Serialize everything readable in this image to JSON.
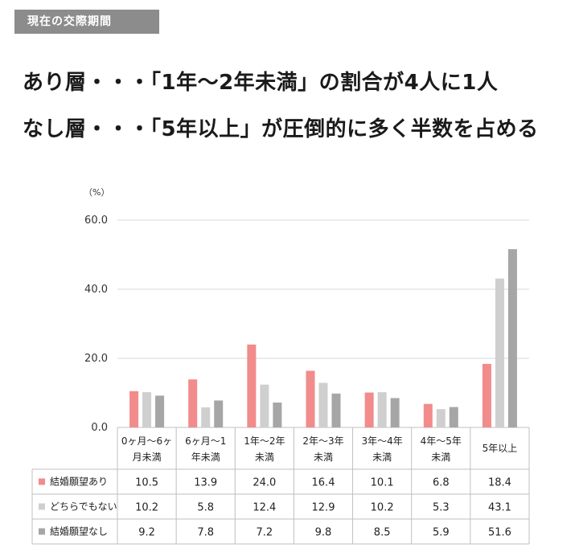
{
  "header": {
    "tag": "現在の交際期間",
    "headline_1": "あり層・・・「1年～2年未満」の割合が4人に1人",
    "headline_2": "なし層・・・「5年以上」が圧倒的に多く半数を占める"
  },
  "colors": {
    "series_1": "#f28b8b",
    "series_2": "#cfcfcf",
    "series_3": "#a6a6a6",
    "tag_bg": "#8c8c8c",
    "gridline": "#d9d9d9"
  },
  "chart_data": {
    "type": "bar",
    "unit_label": "（%）",
    "ylim": [
      0,
      60
    ],
    "yticks": [
      0,
      20,
      40,
      60
    ],
    "ytick_labels": [
      "0.0",
      "20.0",
      "40.0",
      "60.0"
    ],
    "grid": "horizontal",
    "categories": [
      [
        "0ヶ月～6ヶ",
        "月未満"
      ],
      [
        "6ヶ月～1",
        "年未満"
      ],
      [
        "1年～2年",
        "未満"
      ],
      [
        "2年～3年",
        "未満"
      ],
      [
        "3年～4年",
        "未満"
      ],
      [
        "4年～5年",
        "未満"
      ],
      [
        "5年以上"
      ]
    ],
    "series": [
      {
        "name": "結婚願望あり",
        "values": [
          10.5,
          13.9,
          24.0,
          16.4,
          10.1,
          6.8,
          18.4
        ],
        "labels": [
          "10.5",
          "13.9",
          "24.0",
          "16.4",
          "10.1",
          "6.8",
          "18.4"
        ]
      },
      {
        "name": "どちらでもない",
        "values": [
          10.2,
          5.8,
          12.4,
          12.9,
          10.2,
          5.3,
          43.1
        ],
        "labels": [
          "10.2",
          "5.8",
          "12.4",
          "12.9",
          "10.2",
          "5.3",
          "43.1"
        ]
      },
      {
        "name": "結婚願望なし",
        "values": [
          9.2,
          7.8,
          7.2,
          9.8,
          8.5,
          5.9,
          51.6
        ],
        "labels": [
          "9.2",
          "7.8",
          "7.2",
          "9.8",
          "8.5",
          "5.9",
          "51.6"
        ]
      }
    ]
  }
}
